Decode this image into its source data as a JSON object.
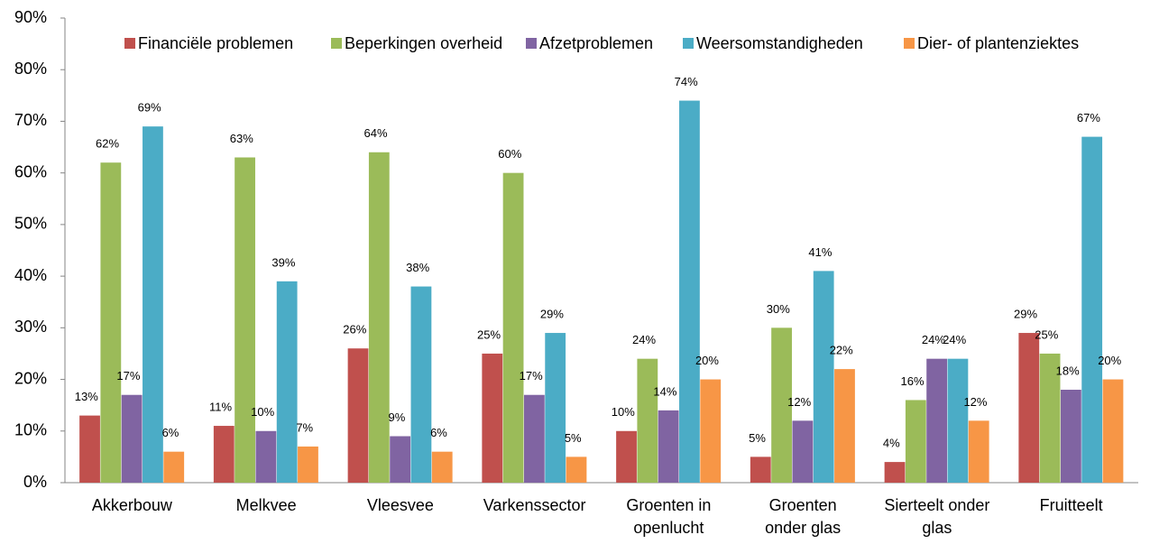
{
  "chart_data": {
    "type": "bar",
    "categories": [
      "Akkerbouw",
      "Melkvee",
      "Vleesvee",
      "Varkenssector",
      "Groenten in\nopenlucht",
      "Groenten\nonder glas",
      "Sierteelt onder\nglas",
      "Fruitteelt"
    ],
    "series": [
      {
        "name": "Financiële problemen",
        "color": "#c0504d",
        "values": [
          13,
          11,
          26,
          25,
          10,
          5,
          4,
          29
        ],
        "value_labels": [
          "13%",
          "11%",
          "26%",
          "25%",
          "10%",
          "5%",
          "4%",
          "29%"
        ]
      },
      {
        "name": "Beperkingen overheid",
        "color": "#9bbb59",
        "values": [
          62,
          63,
          64,
          60,
          24,
          30,
          16,
          25
        ],
        "value_labels": [
          "62%",
          "63%",
          "64%",
          "60%",
          "24%",
          "30%",
          "16%",
          "25%"
        ]
      },
      {
        "name": "Afzetproblemen",
        "color": "#8064a2",
        "values": [
          17,
          10,
          9,
          17,
          14,
          12,
          24,
          18
        ],
        "value_labels": [
          "17%",
          "10%",
          "9%",
          "17%",
          "14%",
          "12%",
          "24%",
          "18%"
        ]
      },
      {
        "name": "Weersomstandigheden",
        "color": "#4bacc6",
        "values": [
          69,
          39,
          38,
          29,
          74,
          41,
          24,
          67
        ],
        "value_labels": [
          "69%",
          "39%",
          "38%",
          "29%",
          "74%",
          "41%",
          "24%",
          "67%"
        ]
      },
      {
        "name": "Dier- of plantenziektes",
        "color": "#f79646",
        "values": [
          6,
          7,
          6,
          5,
          20,
          22,
          12,
          20
        ],
        "value_labels": [
          "6%",
          "7%",
          "6%",
          "5%",
          "20%",
          "22%",
          "12%",
          "20%"
        ]
      }
    ],
    "ylim": [
      0,
      90
    ],
    "yticks": [
      {
        "value": 0,
        "label": "0%"
      },
      {
        "value": 10,
        "label": "10%"
      },
      {
        "value": 20,
        "label": "20%"
      },
      {
        "value": 30,
        "label": "30%"
      },
      {
        "value": 40,
        "label": "40%"
      },
      {
        "value": 50,
        "label": "50%"
      },
      {
        "value": 60,
        "label": "60%"
      },
      {
        "value": 70,
        "label": "70%"
      },
      {
        "value": 80,
        "label": "80%"
      },
      {
        "value": 90,
        "label": "90%"
      }
    ],
    "legend": "top"
  }
}
